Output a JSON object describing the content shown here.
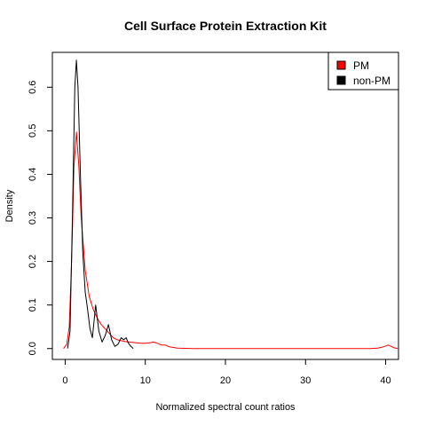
{
  "chart_data": {
    "type": "line",
    "title": "Cell Surface Protein Extraction Kit",
    "xlabel": "Normalized spectral count ratios",
    "ylabel": "Density",
    "xlim": [
      -1.6,
      41.6
    ],
    "ylim": [
      -0.025,
      0.68
    ],
    "x_ticks": [
      0,
      10,
      20,
      30,
      40
    ],
    "y_ticks": [
      0.0,
      0.1,
      0.2,
      0.3,
      0.4,
      0.5,
      0.6
    ],
    "x_tick_labels": [
      "0",
      "10",
      "20",
      "30",
      "40"
    ],
    "y_tick_labels": [
      "0.0",
      "0.1",
      "0.2",
      "0.3",
      "0.4",
      "0.5",
      "0.6"
    ],
    "grid": false,
    "legend_position": "top-right",
    "series": [
      {
        "name": "PM",
        "color": "#ff0000",
        "x": [
          -0.2,
          0.2,
          0.5,
          0.8,
          1.1,
          1.4,
          1.7,
          2.0,
          2.5,
          3.0,
          3.5,
          4.0,
          4.5,
          5.0,
          5.5,
          6.0,
          6.5,
          7.0,
          7.5,
          8.0,
          8.5,
          9.0,
          9.5,
          10.0,
          10.5,
          11.0,
          11.5,
          12.0,
          12.5,
          13.0,
          14.0,
          16.0,
          20.0,
          25.0,
          30.0,
          35.0,
          38.0,
          39.0,
          39.5,
          40.0,
          40.3,
          40.7,
          41.0,
          41.5
        ],
        "y": [
          0.0,
          0.01,
          0.05,
          0.2,
          0.42,
          0.497,
          0.42,
          0.3,
          0.18,
          0.12,
          0.09,
          0.07,
          0.055,
          0.045,
          0.035,
          0.025,
          0.02,
          0.018,
          0.016,
          0.015,
          0.014,
          0.013,
          0.012,
          0.012,
          0.013,
          0.015,
          0.012,
          0.008,
          0.008,
          0.004,
          0.001,
          0.0,
          0.0,
          0.0,
          0.0,
          0.0,
          0.0,
          0.001,
          0.003,
          0.006,
          0.008,
          0.005,
          0.002,
          0.0
        ]
      },
      {
        "name": "non-PM",
        "color": "#000000",
        "x": [
          0.3,
          0.6,
          0.9,
          1.2,
          1.4,
          1.6,
          1.9,
          2.2,
          2.5,
          2.8,
          3.1,
          3.4,
          3.8,
          4.2,
          4.6,
          5.0,
          5.4,
          5.8,
          6.2,
          6.6,
          7.0,
          7.3,
          7.6,
          7.9,
          8.2,
          8.5
        ],
        "y": [
          0.0,
          0.04,
          0.3,
          0.6,
          0.662,
          0.6,
          0.4,
          0.22,
          0.13,
          0.09,
          0.045,
          0.025,
          0.1,
          0.04,
          0.015,
          0.03,
          0.055,
          0.02,
          0.005,
          0.01,
          0.025,
          0.02,
          0.025,
          0.012,
          0.005,
          0.0
        ]
      }
    ]
  }
}
